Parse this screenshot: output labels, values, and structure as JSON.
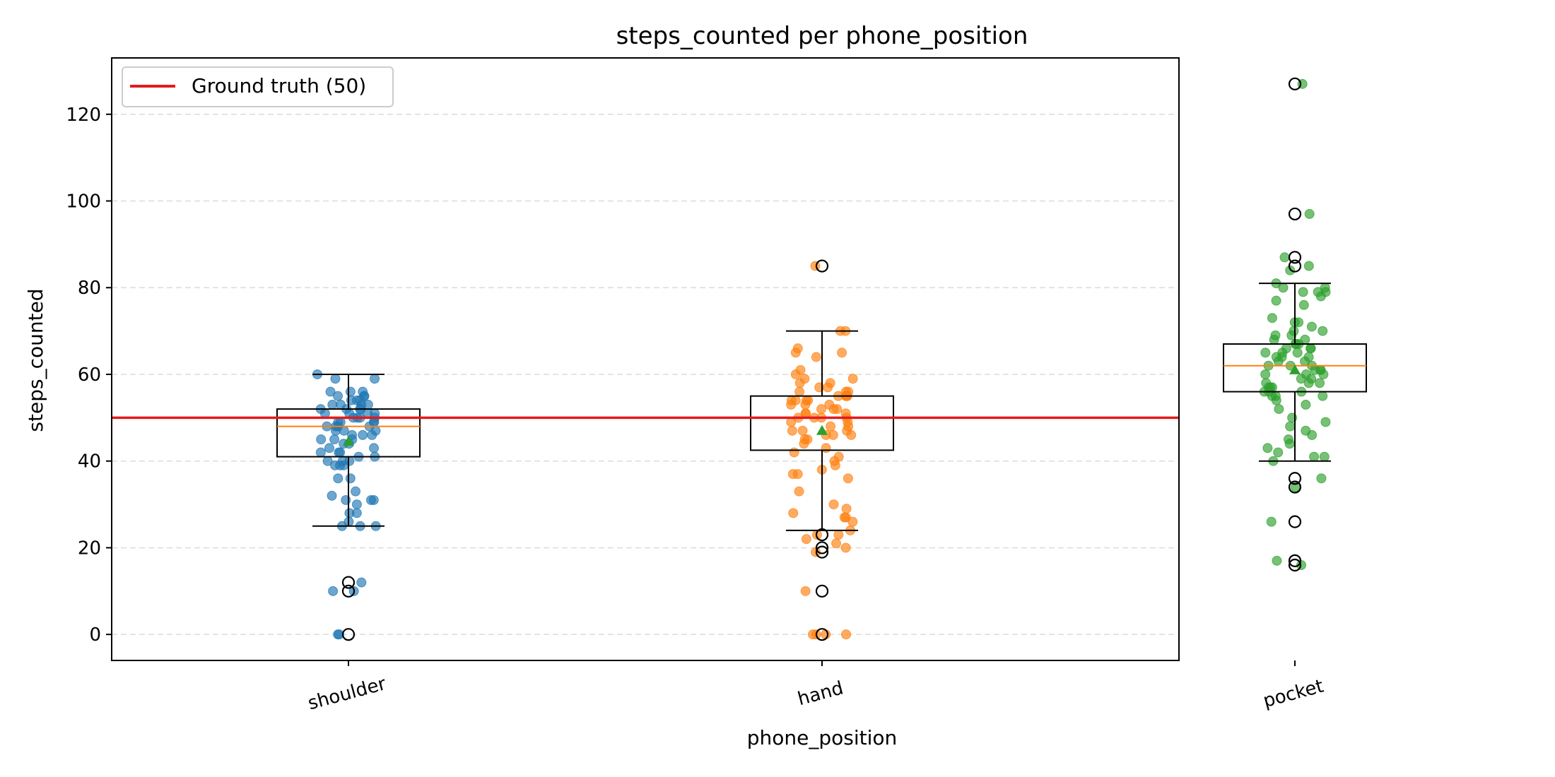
{
  "chart_data": {
    "type": "box",
    "title": "steps_counted per phone_position",
    "xlabel": "phone_position",
    "ylabel": "steps_counted",
    "categories": [
      "shoulder",
      "hand",
      "pocket"
    ],
    "ylim": [
      -6,
      133
    ],
    "yticks": [
      0,
      20,
      40,
      60,
      80,
      100,
      120
    ],
    "grid": "y-dashed",
    "legend": {
      "position": "top-left",
      "label": "Ground truth (50)"
    },
    "reference_line": {
      "y": 50,
      "label": "Ground truth (50)",
      "color": "#e41a1c"
    },
    "colors": {
      "shoulder": "#1f77b4",
      "hand": "#ff7f0e",
      "pocket": "#2ca02c",
      "median": "#ff7f0e",
      "mean": "#2ca02c"
    },
    "boxes": [
      {
        "name": "shoulder",
        "whisker_low": 25,
        "q1": 41,
        "median": 48,
        "q3": 52,
        "whisker_high": 60,
        "mean": 44.5,
        "outliers": [
          12,
          10,
          0
        ]
      },
      {
        "name": "hand",
        "whisker_low": 24,
        "q1": 42.5,
        "median": 50,
        "q3": 55,
        "whisker_high": 70,
        "mean": 47,
        "outliers": [
          85,
          23,
          20,
          19,
          10,
          0
        ]
      },
      {
        "name": "pocket",
        "whisker_low": 40,
        "q1": 56,
        "median": 62,
        "q3": 67,
        "whisker_high": 81,
        "mean": 61,
        "outliers": [
          127,
          97,
          87,
          85,
          36,
          34,
          26,
          17,
          16
        ]
      }
    ],
    "jitter_points": [
      {
        "name": "shoulder",
        "values": [
          60,
          59,
          59,
          56,
          56,
          56,
          55,
          55,
          55,
          54,
          54,
          54,
          53,
          53,
          53,
          53,
          52,
          52,
          52,
          52,
          51,
          51,
          51,
          51,
          50,
          50,
          50,
          50,
          49,
          49,
          49,
          49,
          48,
          48,
          48,
          48,
          47,
          47,
          47,
          46,
          46,
          46,
          45,
          45,
          45,
          44,
          44,
          43,
          43,
          42,
          42,
          42,
          41,
          41,
          40,
          40,
          40,
          39,
          39,
          39,
          36,
          36,
          33,
          32,
          31,
          31,
          31,
          30,
          28,
          28,
          26,
          25,
          25,
          25,
          12,
          10,
          10,
          0,
          0
        ]
      },
      {
        "name": "hand",
        "values": [
          85,
          70,
          70,
          66,
          65,
          65,
          64,
          61,
          60,
          59,
          59,
          58,
          58,
          57,
          57,
          56,
          56,
          56,
          55,
          55,
          55,
          55,
          54,
          54,
          54,
          54,
          53,
          53,
          53,
          52,
          52,
          52,
          51,
          51,
          51,
          50,
          50,
          50,
          50,
          49,
          49,
          48,
          48,
          47,
          47,
          47,
          46,
          46,
          46,
          45,
          45,
          44,
          43,
          42,
          41,
          40,
          39,
          38,
          37,
          37,
          36,
          33,
          30,
          29,
          28,
          27,
          27,
          26,
          24,
          23,
          23,
          22,
          21,
          20,
          19,
          10,
          0,
          0,
          0,
          0
        ]
      },
      {
        "name": "pocket",
        "values": [
          127,
          97,
          87,
          85,
          84,
          81,
          80,
          80,
          79,
          79,
          79,
          78,
          77,
          76,
          73,
          72,
          72,
          71,
          70,
          70,
          69,
          69,
          68,
          68,
          67,
          67,
          67,
          66,
          66,
          66,
          65,
          65,
          65,
          64,
          64,
          64,
          63,
          63,
          62,
          62,
          62,
          61,
          61,
          61,
          60,
          60,
          60,
          59,
          59,
          58,
          58,
          58,
          57,
          57,
          57,
          56,
          56,
          56,
          55,
          55,
          55,
          54,
          53,
          52,
          50,
          49,
          48,
          47,
          46,
          45,
          44,
          43,
          42,
          41,
          41,
          40,
          36,
          34,
          26,
          17,
          16
        ]
      }
    ]
  }
}
